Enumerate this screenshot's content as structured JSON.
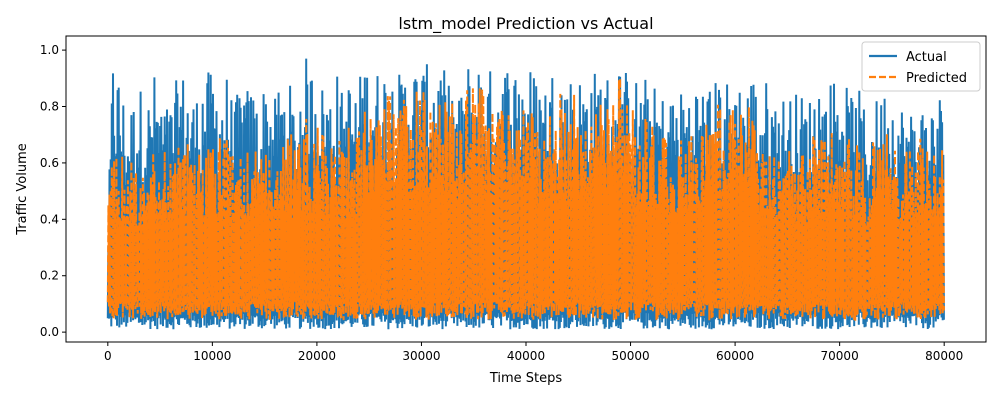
{
  "chart_data": {
    "type": "line",
    "title": "lstm_model Prediction vs Actual",
    "xlabel": "Time Steps",
    "ylabel": "Traffic Volume",
    "xlim": [
      -4000,
      84000
    ],
    "ylim": [
      -0.035,
      1.05
    ],
    "xticks": [
      0,
      10000,
      20000,
      30000,
      40000,
      50000,
      60000,
      70000,
      80000
    ],
    "yticks": [
      0.0,
      0.2,
      0.4,
      0.6,
      0.8,
      1.0
    ],
    "xtick_labels": [
      "0",
      "10000",
      "20000",
      "30000",
      "40000",
      "50000",
      "60000",
      "70000",
      "80000"
    ],
    "ytick_labels": [
      "0.0",
      "0.2",
      "0.4",
      "0.6",
      "0.8",
      "1.0"
    ],
    "legend_position": "top-right",
    "grid": false,
    "series": [
      {
        "name": "Actual",
        "color": "#1f77b4",
        "style": "solid",
        "x": [
          0,
          500,
          1000,
          1500,
          2000,
          2500,
          3000,
          3500,
          4000,
          4500,
          5000,
          5500,
          6000,
          6500,
          7000,
          7500,
          8000,
          8500,
          9000,
          9500,
          10000,
          10500,
          11000,
          11500,
          12000,
          12500,
          13000,
          13500,
          14000,
          14500,
          15000,
          15500,
          16000,
          16500,
          17000,
          17500,
          18000,
          18500,
          19000,
          19500,
          20000,
          20500,
          21000,
          21500,
          22000,
          22500,
          23000,
          23500,
          24000,
          24500,
          25000,
          25500,
          26000,
          26500,
          27000,
          27500,
          28000,
          28500,
          29000,
          29500,
          30000,
          30500,
          31000,
          31500,
          32000,
          32500,
          33000,
          33500,
          34000,
          34500,
          35000,
          35500,
          36000,
          36500,
          37000,
          37500,
          38000,
          38500,
          39000,
          39500,
          40000,
          40500,
          41000,
          41500,
          42000,
          42500,
          43000,
          43500,
          44000,
          44500,
          45000,
          45500,
          46000,
          46500,
          47000,
          47500,
          48000,
          48500,
          49000,
          49500,
          50000,
          50500,
          51000,
          51500,
          52000,
          52500,
          53000,
          53500,
          54000,
          54500,
          55000,
          55500,
          56000,
          56500,
          57000,
          57500,
          58000,
          58500,
          59000,
          59500,
          60000,
          60500,
          61000,
          61500,
          62000,
          62500,
          63000,
          63500,
          64000,
          64500,
          65000,
          65500,
          66000,
          66500,
          67000,
          67500,
          68000,
          68500,
          69000,
          69500,
          70000,
          70500,
          71000,
          71500,
          72000,
          72500,
          73000,
          73500,
          74000,
          74500,
          75000,
          75500,
          76000,
          76500,
          77000,
          77500,
          78000,
          78500,
          79000,
          79500,
          80000
        ],
        "upper": [
          0.37,
          1.0,
          0.94,
          0.85,
          0.79,
          0.84,
          0.88,
          0.86,
          0.84,
          0.93,
          0.85,
          0.81,
          0.82,
          0.89,
          0.93,
          0.92,
          0.86,
          0.85,
          0.93,
          0.93,
          0.92,
          0.91,
          0.9,
          0.93,
          0.8,
          0.86,
          0.91,
          0.86,
          0.88,
          0.8,
          0.9,
          0.88,
          0.83,
          0.9,
          0.89,
          0.88,
          0.78,
          0.94,
          0.98,
          0.95,
          0.96,
          0.89,
          0.89,
          0.87,
          0.94,
          0.84,
          0.91,
          0.87,
          0.9,
          0.97,
          0.98,
          0.95,
          0.93,
          0.96,
          0.95,
          0.93,
          0.92,
          0.96,
          0.94,
          0.97,
          0.95,
          0.95,
          0.97,
          0.98,
          0.96,
          0.88,
          0.91,
          0.82,
          0.9,
          0.97,
          0.95,
          0.98,
          0.95,
          0.94,
          0.93,
          0.96,
          0.97,
          0.96,
          0.96,
          0.97,
          0.94,
          0.95,
          0.92,
          0.91,
          0.9,
          0.95,
          0.92,
          0.96,
          0.9,
          0.94,
          0.92,
          0.91,
          0.94,
          0.93,
          0.95,
          0.92,
          0.93,
          0.91,
          0.97,
          0.94,
          0.9,
          0.91,
          0.89,
          0.91,
          0.88,
          0.87,
          0.85,
          0.86,
          0.86,
          0.85,
          0.87,
          0.88,
          0.89,
          0.9,
          0.89,
          0.88,
          0.89,
          0.92,
          0.91,
          0.89,
          0.92,
          0.9,
          0.9,
          0.93,
          0.91,
          0.88,
          0.9,
          0.85,
          0.86,
          0.85,
          0.84,
          0.86,
          0.85,
          0.85,
          0.83,
          0.87,
          0.92,
          0.85,
          0.88,
          0.94,
          0.96,
          0.88,
          0.86,
          0.85,
          0.86,
          0.78,
          0.8,
          0.83,
          0.87,
          0.87,
          0.88,
          0.82,
          0.82,
          0.79,
          0.8,
          0.81,
          0.82,
          0.8,
          0.84,
          0.86,
          0.85
        ],
        "lower": [
          0.01,
          0.01,
          0.01,
          0.01,
          0.01,
          0.01,
          0.01,
          0.01,
          0.01,
          0.01,
          0.01,
          0.01,
          0.01,
          0.01,
          0.01,
          0.01,
          0.01,
          0.01,
          0.01,
          0.01,
          0.01,
          0.01,
          0.01,
          0.01,
          0.01,
          0.01,
          0.01,
          0.01,
          0.01,
          0.01,
          0.01,
          0.01,
          0.01,
          0.01,
          0.01,
          0.01,
          0.01,
          0.01,
          0.01,
          0.01,
          0.01,
          0.01,
          0.01,
          0.01,
          0.01,
          0.01,
          0.01,
          0.01,
          0.01,
          0.01,
          0.01,
          0.01,
          0.01,
          0.01,
          0.01,
          0.01,
          0.01,
          0.01,
          0.01,
          0.01,
          0.01,
          0.01,
          0.01,
          0.01,
          0.01,
          0.01,
          0.01,
          0.01,
          0.01,
          0.01,
          0.01,
          0.01,
          0.01,
          0.01,
          0.01,
          0.01,
          0.01,
          0.01,
          0.01,
          0.01,
          0.01,
          0.01,
          0.01,
          0.01,
          0.01,
          0.01,
          0.01,
          0.01,
          0.01,
          0.01,
          0.01,
          0.01,
          0.01,
          0.01,
          0.01,
          0.01,
          0.01,
          0.01,
          0.01,
          0.01,
          0.01,
          0.01,
          0.01,
          0.01,
          0.01,
          0.01,
          0.01,
          0.01,
          0.01,
          0.01,
          0.01,
          0.01,
          0.01,
          0.01,
          0.01,
          0.01,
          0.01,
          0.01,
          0.01,
          0.01,
          0.01,
          0.01,
          0.01,
          0.01,
          0.01,
          0.01,
          0.01,
          0.01,
          0.01,
          0.01,
          0.01,
          0.01,
          0.01,
          0.01,
          0.01,
          0.01,
          0.01,
          0.01,
          0.01,
          0.01,
          0.01,
          0.01,
          0.01,
          0.01,
          0.01,
          0.01,
          0.01,
          0.01,
          0.01,
          0.01,
          0.01,
          0.01,
          0.01,
          0.01,
          0.01,
          0.01,
          0.01,
          0.01,
          0.01,
          0.01,
          0.01
        ]
      },
      {
        "name": "Predicted",
        "color": "#ff7f0e",
        "style": "dashed",
        "x": [
          0,
          500,
          1000,
          1500,
          2000,
          2500,
          3000,
          3500,
          4000,
          4500,
          5000,
          5500,
          6000,
          6500,
          7000,
          7500,
          8000,
          8500,
          9000,
          9500,
          10000,
          10500,
          11000,
          11500,
          12000,
          12500,
          13000,
          13500,
          14000,
          14500,
          15000,
          15500,
          16000,
          16500,
          17000,
          17500,
          18000,
          18500,
          19000,
          19500,
          20000,
          20500,
          21000,
          21500,
          22000,
          22500,
          23000,
          23500,
          24000,
          24500,
          25000,
          25500,
          26000,
          26500,
          27000,
          27500,
          28000,
          28500,
          29000,
          29500,
          30000,
          30500,
          31000,
          31500,
          32000,
          32500,
          33000,
          33500,
          34000,
          34500,
          35000,
          35500,
          36000,
          36500,
          37000,
          37500,
          38000,
          38500,
          39000,
          39500,
          40000,
          40500,
          41000,
          41500,
          42000,
          42500,
          43000,
          43500,
          44000,
          44500,
          45000,
          45500,
          46000,
          46500,
          47000,
          47500,
          48000,
          48500,
          49000,
          49500,
          50000,
          50500,
          51000,
          51500,
          52000,
          52500,
          53000,
          53500,
          54000,
          54500,
          55000,
          55500,
          56000,
          56500,
          57000,
          57500,
          58000,
          58500,
          59000,
          59500,
          60000,
          60500,
          61000,
          61500,
          62000,
          62500,
          63000,
          63500,
          64000,
          64500,
          65000,
          65500,
          66000,
          66500,
          67000,
          67500,
          68000,
          68500,
          69000,
          69500,
          70000,
          70500,
          71000,
          71500,
          72000,
          72500,
          73000,
          73500,
          74000,
          74500,
          75000,
          75500,
          76000,
          76500,
          77000,
          77500,
          78000,
          78500,
          79000,
          79500,
          80000
        ],
        "upper": [
          0.46,
          0.72,
          0.71,
          0.62,
          0.6,
          0.64,
          0.62,
          0.6,
          0.65,
          0.64,
          0.62,
          0.65,
          0.62,
          0.66,
          0.66,
          0.67,
          0.67,
          0.66,
          0.64,
          0.7,
          0.67,
          0.69,
          0.71,
          0.7,
          0.62,
          0.68,
          0.66,
          0.63,
          0.65,
          0.62,
          0.63,
          0.65,
          0.62,
          0.66,
          0.68,
          0.72,
          0.62,
          0.74,
          0.78,
          0.74,
          0.73,
          0.71,
          0.72,
          0.66,
          0.72,
          0.64,
          0.73,
          0.68,
          0.72,
          0.84,
          0.82,
          0.83,
          0.82,
          0.85,
          0.84,
          0.83,
          0.82,
          0.87,
          0.86,
          0.87,
          0.88,
          0.88,
          0.89,
          0.89,
          0.88,
          0.77,
          0.82,
          0.68,
          0.78,
          0.93,
          0.88,
          0.92,
          0.86,
          0.84,
          0.84,
          0.85,
          0.85,
          0.85,
          0.84,
          0.86,
          0.82,
          0.83,
          0.78,
          0.77,
          0.78,
          0.83,
          0.8,
          0.88,
          0.76,
          0.86,
          0.84,
          0.8,
          0.84,
          0.82,
          0.86,
          0.83,
          0.85,
          0.8,
          0.92,
          0.84,
          0.8,
          0.78,
          0.75,
          0.77,
          0.74,
          0.71,
          0.7,
          0.7,
          0.7,
          0.69,
          0.72,
          0.74,
          0.76,
          0.76,
          0.75,
          0.75,
          0.78,
          0.84,
          0.82,
          0.8,
          0.8,
          0.82,
          0.76,
          0.82,
          0.76,
          0.7,
          0.72,
          0.69,
          0.68,
          0.69,
          0.66,
          0.67,
          0.67,
          0.68,
          0.66,
          0.7,
          0.74,
          0.69,
          0.7,
          0.74,
          0.72,
          0.71,
          0.7,
          0.68,
          0.69,
          0.64,
          0.66,
          0.7,
          0.72,
          0.74,
          0.7,
          0.68,
          0.68,
          0.66,
          0.66,
          0.68,
          0.7,
          0.68,
          0.69,
          0.7,
          0.68
        ],
        "lower": [
          0.05,
          0.04,
          0.05,
          0.04,
          0.05,
          0.04,
          0.05,
          0.04,
          0.05,
          0.04,
          0.05,
          0.04,
          0.05,
          0.04,
          0.05,
          0.04,
          0.05,
          0.04,
          0.05,
          0.04,
          0.05,
          0.04,
          0.05,
          0.04,
          0.05,
          0.04,
          0.05,
          0.04,
          0.05,
          0.04,
          0.05,
          0.04,
          0.05,
          0.04,
          0.05,
          0.04,
          0.05,
          0.04,
          0.05,
          0.04,
          0.05,
          0.04,
          0.05,
          0.04,
          0.05,
          0.04,
          0.05,
          0.04,
          0.05,
          0.04,
          0.05,
          0.04,
          0.05,
          0.04,
          0.05,
          0.04,
          0.05,
          0.04,
          0.05,
          0.04,
          0.05,
          0.04,
          0.05,
          0.04,
          0.05,
          0.04,
          0.05,
          0.04,
          0.05,
          0.04,
          0.05,
          0.04,
          0.05,
          0.04,
          0.05,
          0.04,
          0.05,
          0.04,
          0.05,
          0.04,
          0.05,
          0.04,
          0.05,
          0.04,
          0.05,
          0.04,
          0.05,
          0.04,
          0.05,
          0.04,
          0.05,
          0.04,
          0.05,
          0.04,
          0.05,
          0.04,
          0.05,
          0.04,
          0.05,
          0.04,
          0.05,
          0.04,
          0.05,
          0.04,
          0.05,
          0.04,
          0.05,
          0.04,
          0.05,
          0.04,
          0.05,
          0.04,
          0.05,
          0.04,
          0.05,
          0.04,
          0.05,
          0.04,
          0.05,
          0.04,
          0.05,
          0.04,
          0.05,
          0.04,
          0.05,
          0.04,
          0.05,
          0.04,
          0.05,
          0.04,
          0.05,
          0.04,
          0.05,
          0.04,
          0.05,
          0.04,
          0.05,
          0.04,
          0.05,
          0.04,
          0.05,
          0.04,
          0.05,
          0.04,
          0.05,
          0.04,
          0.05,
          0.04,
          0.05,
          0.04,
          0.05,
          0.04,
          0.05,
          0.04,
          0.05,
          0.04,
          0.05,
          0.04,
          0.05,
          0.04,
          0.05
        ]
      }
    ]
  }
}
